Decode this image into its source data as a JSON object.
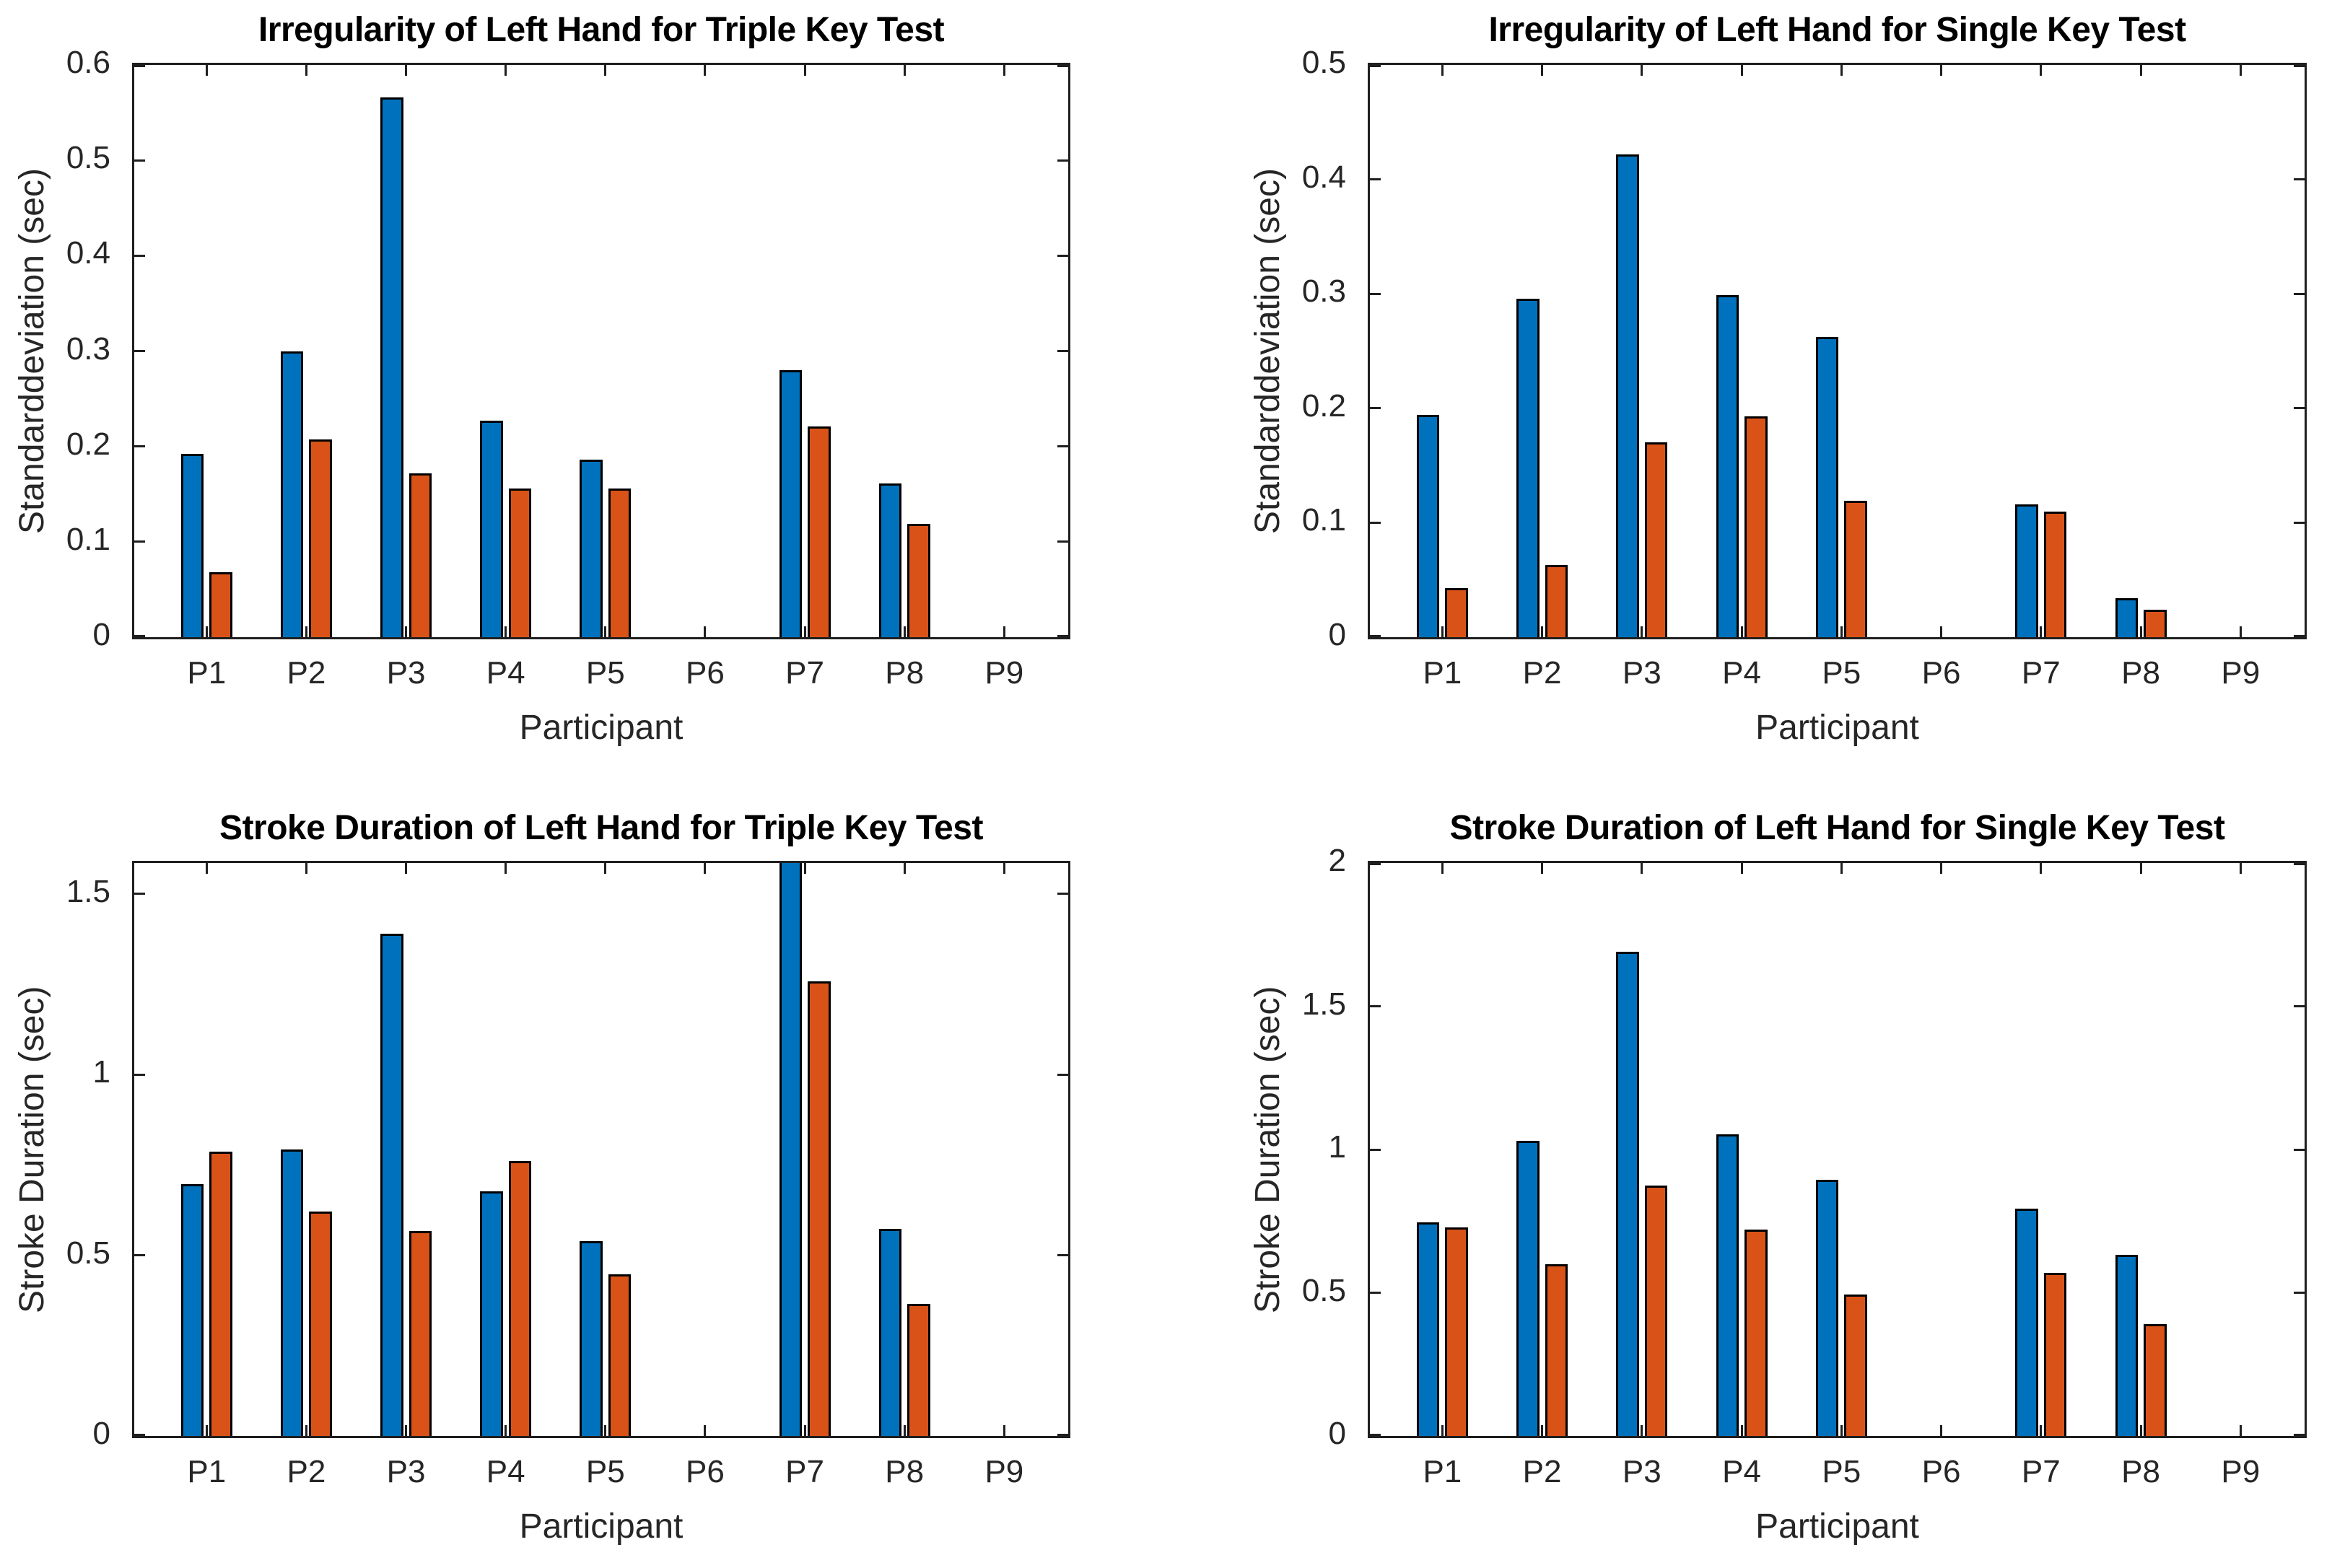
{
  "figure": {
    "background": "#ffffff",
    "layout": "2x2 grid of MATLAB-style grouped bar charts",
    "colors": {
      "series_blue": "#0072BD",
      "series_orange": "#D95319",
      "bar_edge": "#000000",
      "axis_line": "#1f1f1f",
      "tick_text": "#262626",
      "title_text": "#000000"
    }
  },
  "chart_data": [
    {
      "id": "irregularity-triple-key",
      "type": "bar",
      "title": "Irregularity of Left Hand for Triple Key Test",
      "xlabel": "Participant",
      "ylabel": "Standarddeviation (sec)",
      "categories": [
        "P1",
        "P2",
        "P3",
        "P4",
        "P5",
        "P6",
        "P7",
        "P8",
        "P9"
      ],
      "series": [
        {
          "name": "blue",
          "color": "#0072BD",
          "values": [
            0.192,
            0.3,
            0.566,
            0.227,
            0.186,
            0,
            0.28,
            0.161,
            0
          ]
        },
        {
          "name": "orange",
          "color": "#D95319",
          "values": [
            0.068,
            0.207,
            0.172,
            0.156,
            0.156,
            0,
            0.221,
            0.119,
            0
          ]
        }
      ],
      "ylim": [
        0,
        0.6
      ],
      "yticks": [
        0,
        0.1,
        0.2,
        0.3,
        0.4,
        0.5,
        0.6
      ],
      "ytick_labels": [
        "0",
        "0.1",
        "0.2",
        "0.3",
        "0.4",
        "0.5",
        "0.6"
      ],
      "grid": false,
      "legend": "none"
    },
    {
      "id": "irregularity-single-key",
      "type": "bar",
      "title": "Irregularity of Left Hand for Single Key Test",
      "xlabel": "Participant",
      "ylabel": "Standarddeviation (sec)",
      "categories": [
        "P1",
        "P2",
        "P3",
        "P4",
        "P5",
        "P6",
        "P7",
        "P8",
        "P9"
      ],
      "series": [
        {
          "name": "blue",
          "color": "#0072BD",
          "values": [
            0.194,
            0.296,
            0.422,
            0.299,
            0.262,
            0,
            0.116,
            0.034,
            0
          ]
        },
        {
          "name": "orange",
          "color": "#D95319",
          "values": [
            0.043,
            0.063,
            0.17,
            0.193,
            0.119,
            0,
            0.11,
            0.024,
            0
          ]
        }
      ],
      "ylim": [
        0,
        0.5
      ],
      "yticks": [
        0,
        0.1,
        0.2,
        0.3,
        0.4,
        0.5
      ],
      "ytick_labels": [
        "0",
        "0.1",
        "0.2",
        "0.3",
        "0.4",
        "0.5"
      ],
      "grid": false,
      "legend": "none"
    },
    {
      "id": "stroke-duration-triple-key",
      "type": "bar",
      "title": "Stroke Duration of Left Hand for Triple Key Test",
      "xlabel": "Participant",
      "ylabel": "Stroke Duration (sec)",
      "categories": [
        "P1",
        "P2",
        "P3",
        "P4",
        "P5",
        "P6",
        "P7",
        "P8",
        "P9"
      ],
      "series": [
        {
          "name": "blue",
          "color": "#0072BD",
          "values": [
            0.697,
            0.792,
            1.39,
            0.676,
            0.54,
            0,
            1.62,
            0.572,
            0
          ]
        },
        {
          "name": "orange",
          "color": "#D95319",
          "values": [
            0.787,
            0.62,
            0.567,
            0.76,
            0.447,
            0,
            1.258,
            0.365,
            0
          ]
        }
      ],
      "ylim": [
        0,
        1.585
      ],
      "yticks": [
        0,
        0.5,
        1,
        1.5
      ],
      "ytick_labels": [
        "0",
        "0.5",
        "1",
        "1.5"
      ],
      "grid": false,
      "legend": "none",
      "annotations": [
        "P7 blue bar is clipped by the top edge of the axes"
      ]
    },
    {
      "id": "stroke-duration-single-key",
      "type": "bar",
      "title": "Stroke Duration of Left Hand for Single Key Test",
      "xlabel": "Participant",
      "ylabel": "Stroke Duration (sec)",
      "categories": [
        "P1",
        "P2",
        "P3",
        "P4",
        "P5",
        "P6",
        "P7",
        "P8",
        "P9"
      ],
      "series": [
        {
          "name": "blue",
          "color": "#0072BD",
          "values": [
            0.745,
            1.03,
            1.69,
            1.052,
            0.895,
            0,
            0.793,
            0.633,
            0
          ]
        },
        {
          "name": "orange",
          "color": "#D95319",
          "values": [
            0.728,
            0.6,
            0.873,
            0.721,
            0.495,
            0,
            0.57,
            0.39,
            0
          ]
        }
      ],
      "ylim": [
        0,
        2
      ],
      "yticks": [
        0,
        0.5,
        1,
        1.5,
        2
      ],
      "ytick_labels": [
        "0",
        "0.5",
        "1",
        "1.5",
        "2"
      ],
      "grid": false,
      "legend": "none"
    }
  ]
}
